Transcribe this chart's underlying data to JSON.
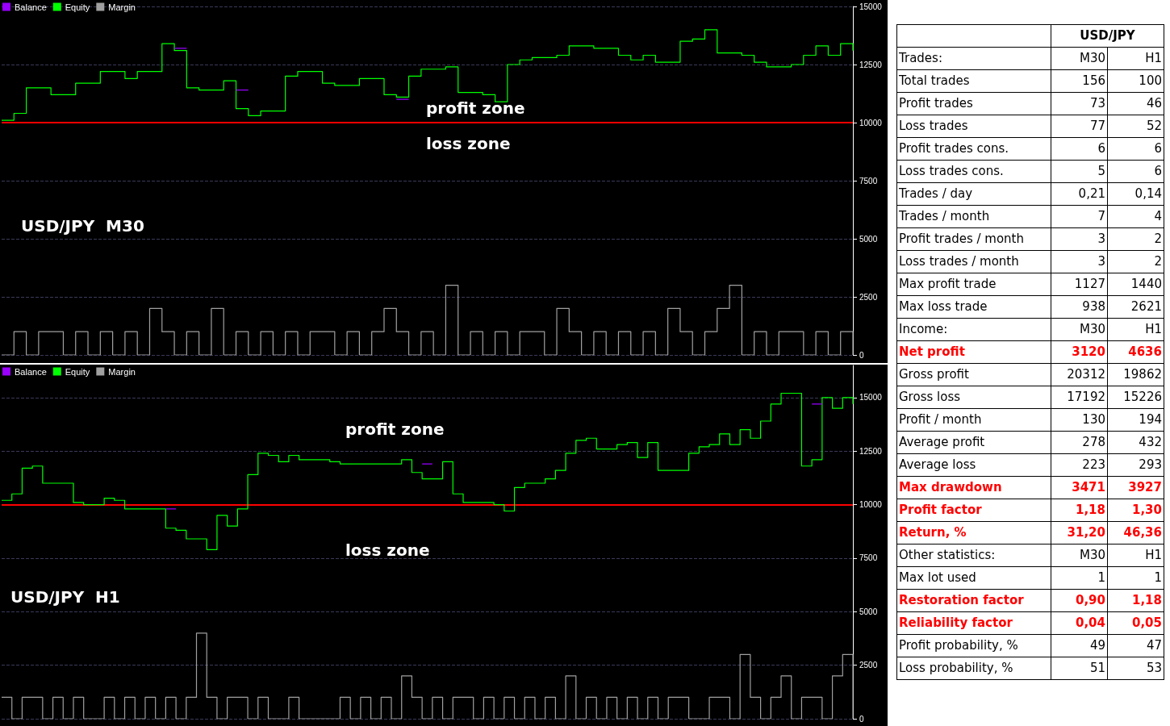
{
  "chart_data": [
    {
      "type": "step",
      "legend": "top left",
      "grid": "y",
      "marker": "none",
      "ylim": [
        0,
        15000
      ],
      "yticks": [
        0,
        2500,
        5000,
        7500,
        10000,
        12500,
        15000
      ],
      "tick_labels": "y",
      "ref_lines": [
        {
          "axis": "y",
          "value": 10000,
          "color": "#ff0000",
          "line_style": "solid"
        }
      ],
      "annotations": [
        "profit zone",
        "loss zone",
        "USD/JPY  M30"
      ],
      "categories": [
        null,
        null,
        null,
        null,
        null,
        null,
        null,
        null,
        null,
        null,
        null,
        null,
        null,
        null,
        null,
        null,
        null,
        null,
        null,
        null,
        null,
        null,
        null,
        null,
        null,
        null,
        null,
        null,
        null,
        null,
        null,
        null,
        null,
        null,
        null,
        null,
        null,
        null,
        null,
        null,
        null,
        null,
        null,
        null,
        null,
        null,
        null,
        null,
        null,
        null,
        null,
        null,
        null,
        null,
        null,
        null,
        null,
        null,
        null,
        null,
        null,
        null,
        null,
        null,
        null,
        null,
        null,
        null,
        null,
        null
      ],
      "series": [
        {
          "name": "Balance",
          "color": "#9900ff",
          "values": [
            null,
            null,
            null,
            null,
            null,
            null,
            null,
            null,
            null,
            null,
            null,
            null,
            null,
            null,
            13200,
            13200,
            null,
            null,
            null,
            11400,
            11400,
            null,
            null,
            null,
            null,
            null,
            null,
            null,
            null,
            null,
            null,
            null,
            11000,
            11000,
            null,
            null,
            null,
            null,
            null,
            null,
            null,
            null,
            null,
            null,
            null,
            null,
            null,
            null,
            null,
            null,
            null,
            null,
            null,
            null,
            null,
            null,
            null,
            null,
            null,
            null,
            null,
            null,
            null,
            null,
            null,
            null,
            null,
            null,
            null,
            null
          ]
        },
        {
          "name": "Equity",
          "color": "#00ff00",
          "values": [
            10100,
            10400,
            11500,
            11500,
            11200,
            11200,
            11700,
            11700,
            12200,
            12200,
            11900,
            12200,
            12200,
            13400,
            13100,
            11500,
            11400,
            11400,
            11800,
            10600,
            10300,
            10500,
            10500,
            12000,
            12200,
            12200,
            11700,
            11600,
            11600,
            11900,
            11900,
            11200,
            11100,
            12000,
            12300,
            12300,
            12400,
            11300,
            11300,
            11200,
            10900,
            12500,
            12700,
            12800,
            12800,
            12900,
            13300,
            13300,
            13200,
            13200,
            12900,
            12700,
            12900,
            12600,
            12600,
            13500,
            13600,
            14000,
            13000,
            13000,
            12900,
            12600,
            12400,
            12400,
            12500,
            12900,
            13300,
            12900,
            13400,
            13100
          ]
        },
        {
          "name": "Margin",
          "color": "#a0a0a0",
          "values": [
            0,
            1000,
            0,
            1000,
            1000,
            0,
            1000,
            0,
            1000,
            0,
            1000,
            0,
            2000,
            1000,
            0,
            1000,
            0,
            2000,
            0,
            1000,
            0,
            1000,
            0,
            1000,
            0,
            1000,
            1000,
            0,
            1000,
            0,
            1000,
            2000,
            1000,
            0,
            1000,
            0,
            3000,
            0,
            1000,
            0,
            1000,
            0,
            1000,
            1000,
            0,
            2000,
            1000,
            0,
            1000,
            0,
            1000,
            0,
            1000,
            0,
            2000,
            1000,
            0,
            1000,
            2000,
            3000,
            0,
            1000,
            0,
            1000,
            1000,
            0,
            1000,
            0,
            1000,
            0
          ]
        }
      ]
    },
    {
      "type": "step",
      "legend": "top left",
      "grid": "y",
      "marker": "none",
      "ylim": [
        0,
        16500
      ],
      "yticks": [
        0,
        2500,
        5000,
        7500,
        10000,
        12500,
        15000
      ],
      "tick_labels": "y",
      "ref_lines": [
        {
          "axis": "y",
          "value": 10000,
          "color": "#ff0000",
          "line_style": "solid"
        }
      ],
      "annotations": [
        "profit zone",
        "loss zone",
        "USD/JPY  H1"
      ],
      "categories": [
        null,
        null,
        null,
        null,
        null,
        null,
        null,
        null,
        null,
        null,
        null,
        null,
        null,
        null,
        null,
        null,
        null,
        null,
        null,
        null,
        null,
        null,
        null,
        null,
        null,
        null,
        null,
        null,
        null,
        null,
        null,
        null,
        null,
        null,
        null,
        null,
        null,
        null,
        null,
        null,
        null,
        null,
        null,
        null,
        null,
        null,
        null,
        null,
        null,
        null,
        null,
        null,
        null,
        null,
        null,
        null,
        null,
        null,
        null,
        null,
        null,
        null,
        null,
        null,
        null,
        null,
        null,
        null,
        null,
        null,
        null,
        null,
        null,
        null,
        null,
        null,
        null,
        null,
        null,
        null,
        null,
        null,
        null,
        null
      ],
      "series": [
        {
          "name": "Balance",
          "color": "#9900ff",
          "values": [
            null,
            null,
            null,
            null,
            null,
            null,
            null,
            null,
            null,
            null,
            null,
            null,
            null,
            null,
            null,
            null,
            9800,
            9800,
            null,
            null,
            null,
            null,
            null,
            null,
            null,
            null,
            null,
            null,
            null,
            null,
            null,
            null,
            null,
            null,
            null,
            null,
            null,
            null,
            null,
            null,
            null,
            11900,
            11900,
            null,
            null,
            null,
            null,
            null,
            null,
            null,
            null,
            null,
            null,
            null,
            null,
            null,
            null,
            null,
            null,
            null,
            null,
            null,
            null,
            null,
            null,
            null,
            null,
            null,
            null,
            null,
            null,
            null,
            null,
            null,
            null,
            null,
            null,
            null,
            null,
            14700,
            14700,
            null,
            null,
            null
          ]
        },
        {
          "name": "Equity",
          "color": "#00ff00",
          "values": [
            10200,
            10500,
            11700,
            11800,
            11000,
            11000,
            11000,
            10100,
            10000,
            10000,
            10300,
            10200,
            9800,
            9800,
            9800,
            9800,
            8900,
            8800,
            8400,
            8400,
            7900,
            9500,
            9000,
            9800,
            11400,
            12400,
            12300,
            12000,
            12300,
            12100,
            12100,
            12100,
            12000,
            11900,
            11900,
            11900,
            11900,
            11900,
            11900,
            12100,
            11500,
            11200,
            11200,
            12000,
            10500,
            10100,
            10100,
            10100,
            10000,
            9700,
            10800,
            11000,
            11000,
            11200,
            11600,
            12400,
            13000,
            13100,
            12600,
            12600,
            12800,
            12900,
            12200,
            12900,
            11600,
            11600,
            11600,
            12400,
            12700,
            12800,
            13300,
            12800,
            13500,
            13100,
            13900,
            14700,
            15200,
            15200,
            11800,
            12100,
            15000,
            14500,
            15000,
            14700
          ]
        },
        {
          "name": "Margin",
          "color": "#a0a0a0",
          "values": [
            1000,
            0,
            1000,
            1000,
            0,
            1000,
            0,
            1000,
            0,
            0,
            1000,
            0,
            1000,
            0,
            1000,
            0,
            1000,
            0,
            1000,
            4000,
            1000,
            0,
            1000,
            1000,
            0,
            1000,
            0,
            0,
            1000,
            0,
            0,
            0,
            0,
            1000,
            0,
            1000,
            0,
            1000,
            0,
            2000,
            1000,
            0,
            1000,
            0,
            1000,
            1000,
            0,
            1000,
            0,
            1000,
            0,
            1000,
            0,
            1000,
            0,
            2000,
            0,
            1000,
            0,
            1000,
            0,
            1000,
            0,
            1000,
            0,
            1000,
            1000,
            0,
            0,
            1000,
            1000,
            0,
            3000,
            1000,
            0,
            1000,
            2000,
            0,
            1000,
            1000,
            0,
            2000,
            3000,
            0
          ]
        }
      ]
    },
    {
      "type": "other",
      "title": "USD/JPY",
      "y_categories": [
        "Trades:",
        "Total trades",
        "Profit trades",
        "Loss trades",
        "Profit trades cons.",
        "Loss trades cons.",
        "Trades / day",
        "Trades / month",
        "Profit trades / month",
        "Loss trades / month",
        "Max profit trade",
        "Max loss trade",
        "Income:",
        "Net profit",
        "Gross profit",
        "Gross loss",
        "Profit / month",
        "Average profit",
        "Average loss",
        "Max drawdown",
        "Profit factor",
        "Return, %",
        "Other statistics:",
        "Max lot used",
        "Restoration factor",
        "Reliability factor",
        "Profit probability, %",
        "Loss probability, %"
      ],
      "cell_labels": [
        [
          "M30",
          "H1"
        ],
        [
          "156",
          "100"
        ],
        [
          "73",
          "46"
        ],
        [
          "77",
          "52"
        ],
        [
          "6",
          "6"
        ],
        [
          "5",
          "6"
        ],
        [
          "0,21",
          "0,14"
        ],
        [
          "7",
          "4"
        ],
        [
          "3",
          "2"
        ],
        [
          "3",
          "2"
        ],
        [
          "1127",
          "1440"
        ],
        [
          "938",
          "2621"
        ],
        [
          "M30",
          "H1"
        ],
        [
          "3120",
          "4636"
        ],
        [
          "20312",
          "19862"
        ],
        [
          "17192",
          "15226"
        ],
        [
          "130",
          "194"
        ],
        [
          "278",
          "432"
        ],
        [
          "223",
          "293"
        ],
        [
          "3471",
          "3927"
        ],
        [
          "1,18",
          "1,30"
        ],
        [
          "31,20",
          "46,36"
        ],
        [
          "M30",
          "H1"
        ],
        [
          "1",
          "1"
        ],
        [
          "0,90",
          "1,18"
        ],
        [
          "0,04",
          "0,05"
        ],
        [
          "49",
          "47"
        ],
        [
          "51",
          "53"
        ]
      ],
      "colors": [
        "#000000",
        "#000000",
        "#000000",
        "#000000",
        "#000000",
        "#000000",
        "#000000",
        "#000000",
        "#000000",
        "#000000",
        "#000000",
        "#000000",
        "#000000",
        "#ff0000",
        "#000000",
        "#000000",
        "#000000",
        "#000000",
        "#000000",
        "#ff0000",
        "#ff0000",
        "#ff0000",
        "#000000",
        "#000000",
        "#ff0000",
        "#ff0000",
        "#000000",
        "#000000"
      ]
    }
  ]
}
